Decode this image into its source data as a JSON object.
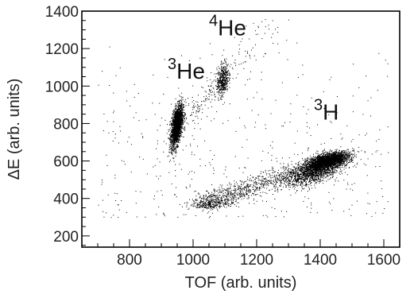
{
  "chart_data": {
    "type": "scatter",
    "xlabel": "TOF (arb. units)",
    "ylabel": "ΔE (arb. units)",
    "xlim": [
      650,
      1650
    ],
    "ylim": [
      140,
      1400
    ],
    "x_ticks": [
      800,
      1000,
      1200,
      1400,
      1600
    ],
    "y_ticks": [
      200,
      400,
      600,
      800,
      1000,
      1200,
      1400
    ],
    "grid": false,
    "annotations": [
      {
        "mass": "3",
        "symbol": "He",
        "x": 920,
        "y": 1040
      },
      {
        "mass": "4",
        "symbol": "He",
        "x": 1050,
        "y": 1270
      },
      {
        "mass": "3",
        "symbol": "H",
        "x": 1380,
        "y": 820
      }
    ],
    "clusters": [
      {
        "x": 948,
        "y": 790,
        "sx": 9,
        "sy": 55,
        "rho": 0.5,
        "count": 2200
      },
      {
        "x": 1092,
        "y": 1035,
        "sx": 9,
        "sy": 45,
        "rho": 0.3,
        "count": 450
      },
      {
        "x": 1425,
        "y": 603,
        "sx": 32,
        "sy": 22,
        "rho": 0.55,
        "count": 2300
      },
      {
        "x": 1380,
        "y": 545,
        "sx": 45,
        "sy": 38,
        "rho": 0.6,
        "count": 1300
      },
      {
        "x": 1060,
        "y": 375,
        "sx": 35,
        "sy": 15,
        "rho": 0.2,
        "count": 260
      }
    ],
    "bands": [
      {
        "x0": 1020,
        "y0": 375,
        "x1": 1440,
        "y1": 600,
        "spread": 28,
        "count": 1100
      },
      {
        "x0": 950,
        "y0": 790,
        "x1": 1090,
        "y1": 1035,
        "spread": 30,
        "count": 160
      },
      {
        "x0": 1090,
        "y0": 1035,
        "x1": 1250,
        "y1": 1330,
        "spread": 60,
        "count": 90
      }
    ],
    "background_points": 420
  }
}
